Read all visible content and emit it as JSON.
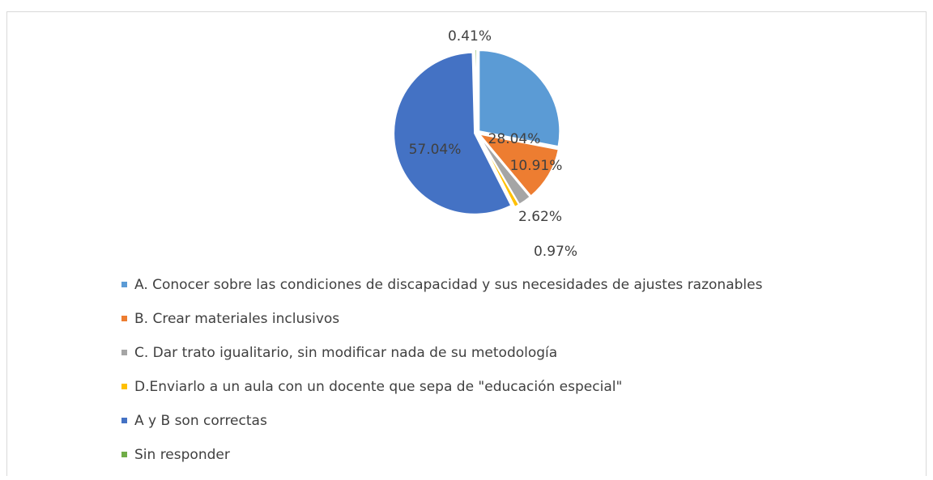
{
  "chart_data": {
    "type": "pie",
    "categories": [
      "A. Conocer sobre las condiciones de discapacidad y sus necesidades de ajustes razonables",
      "B. Crear materiales inclusivos",
      "C. Dar trato igualitario, sin modificar nada de su metodología",
      "D.Enviarlo a un aula con un docente que sepa de \"educación especial\"",
      "A y B son correctas",
      "Sin responder"
    ],
    "values": [
      28.04,
      10.91,
      2.62,
      0.97,
      57.04,
      0.41
    ],
    "value_labels": [
      "28.04%",
      "10.91%",
      "2.62%",
      "0.97%",
      "57.04%",
      "0.41%"
    ],
    "colors": [
      "#5b9bd5",
      "#ed7d31",
      "#a5a5a5",
      "#ffc000",
      "#4472c4",
      "#70ad47"
    ],
    "legend": "bottom"
  }
}
